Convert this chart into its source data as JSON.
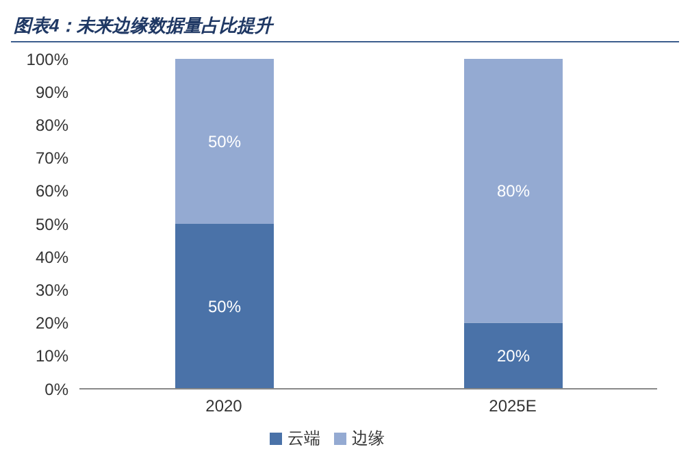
{
  "chart_data": {
    "type": "bar",
    "title": "图表4：未来边缘数据量占比提升",
    "categories": [
      "2020",
      "2025E"
    ],
    "stacked": true,
    "legend": "bottom",
    "ylim": [
      0,
      100
    ],
    "yticks": [
      {
        "value": 0,
        "label": "0%"
      },
      {
        "value": 10,
        "label": "10%"
      },
      {
        "value": 20,
        "label": "20%"
      },
      {
        "value": 30,
        "label": "30%"
      },
      {
        "value": 40,
        "label": "40%"
      },
      {
        "value": 50,
        "label": "50%"
      },
      {
        "value": 60,
        "label": "60%"
      },
      {
        "value": 70,
        "label": "70%"
      },
      {
        "value": 80,
        "label": "80%"
      },
      {
        "value": 90,
        "label": "90%"
      },
      {
        "value": 100,
        "label": "100%"
      }
    ],
    "series": [
      {
        "name": "云端",
        "color": "#4a72a8",
        "values": [
          50,
          20
        ],
        "value_labels": [
          "50%",
          "20%"
        ]
      },
      {
        "name": "边缘",
        "color": "#94aad2",
        "values": [
          50,
          80
        ],
        "value_labels": [
          "50%",
          "80%"
        ]
      }
    ]
  }
}
